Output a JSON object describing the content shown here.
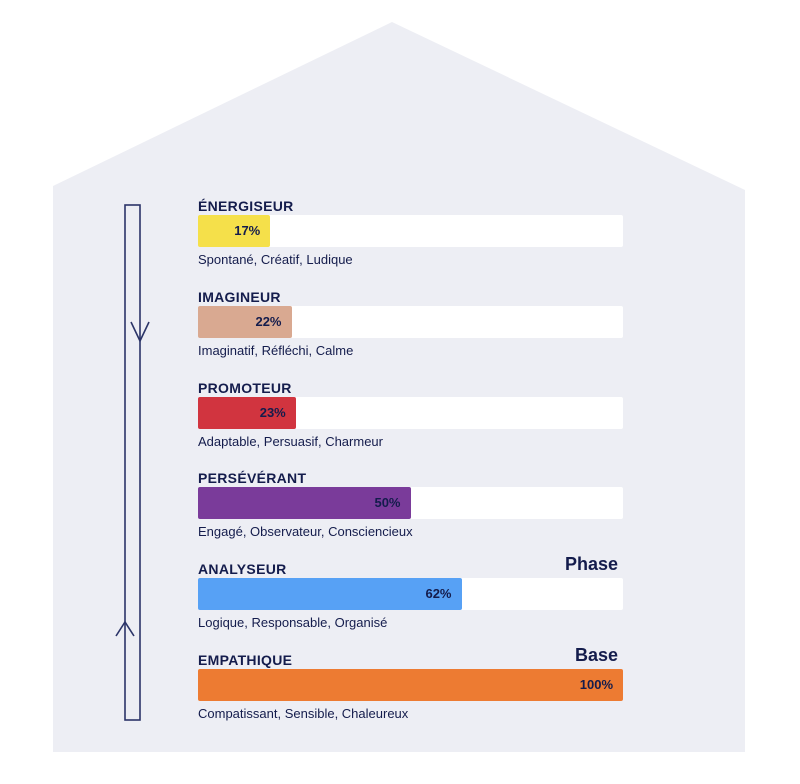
{
  "chart_data": {
    "type": "bar",
    "orientation": "horizontal",
    "xlim": [
      0,
      100
    ],
    "unit": "%",
    "categories": [
      "ÉNERGISEUR",
      "IMAGINEUR",
      "PROMOTEUR",
      "PERSÉVÉRANT",
      "ANALYSEUR",
      "EMPATHIQUE"
    ],
    "values": [
      17,
      22,
      23,
      50,
      62,
      100
    ],
    "value_labels": [
      "17%",
      "22%",
      "23%",
      "50%",
      "62%",
      "100%"
    ],
    "descriptions": [
      "Spontané, Créatif, Ludique",
      "Imaginatif, Réfléchi, Calme",
      "Adaptable, Persuasif, Charmeur",
      "Engagé, Observateur, Consciencieux",
      "Logique, Responsable, Organisé",
      "Compatissant, Sensible, Chaleureux"
    ],
    "colors": [
      "#f5e04a",
      "#d9a991",
      "#d1343f",
      "#7a3b9a",
      "#57a1f5",
      "#ed7b32"
    ],
    "tags": [
      "",
      "",
      "",
      "",
      "Phase",
      "Base"
    ],
    "grid": false,
    "legend": "none"
  },
  "colors": {
    "background": "#edeef4",
    "track": "#ffffff",
    "text": "#141c4c",
    "arrow": "#2b3468"
  }
}
